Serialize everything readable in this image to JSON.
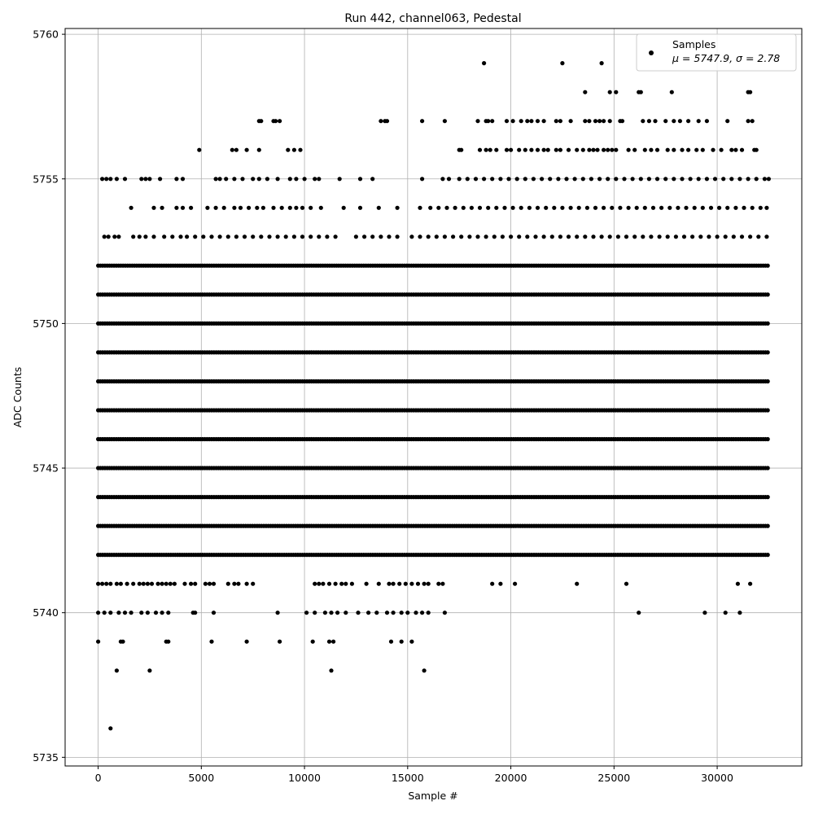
{
  "chart_data": {
    "type": "scatter",
    "title": "Run 442, channel063, Pedestal",
    "xlabel": "Sample #",
    "ylabel": "ADC Counts",
    "xlim": [
      -1600,
      34100
    ],
    "ylim": [
      5734.7,
      5760.2
    ],
    "xticks": [
      0,
      5000,
      10000,
      15000,
      20000,
      25000,
      30000
    ],
    "yticks": [
      5735,
      5740,
      5745,
      5750,
      5755,
      5760
    ],
    "grid": true,
    "legend_position": "top-right",
    "marker_color": "#000000",
    "series": [
      {
        "name": "Samples",
        "stats_label": "μ = 5747.9, σ = 2.78",
        "x_range": [
          0,
          32500
        ],
        "levels": [
          {
            "y": 5759,
            "x": [
              18700,
              22500,
              24400
            ]
          },
          {
            "y": 5758,
            "x": [
              23600,
              24800,
              25100,
              26200,
              26300,
              27800,
              31500,
              31600
            ]
          },
          {
            "y": 5757,
            "x": [
              7800,
              7900,
              8500,
              8600,
              8800,
              13700,
              13900,
              14000,
              15700,
              16800,
              18400,
              18800,
              18900,
              19100,
              19800,
              20100,
              20500,
              20800,
              21000,
              21300,
              21600,
              22200,
              22400,
              22900,
              23600,
              23800,
              24100,
              24300,
              24500,
              24800,
              25300,
              25400,
              26400,
              26700,
              27000,
              27500,
              27900,
              28200,
              28600,
              29100,
              29500,
              30500,
              31500,
              31700
            ]
          },
          {
            "y": 5756,
            "x": [
              4900,
              6500,
              6700,
              7200,
              7800,
              9200,
              9500,
              9800,
              17500,
              17600,
              18500,
              18800,
              19000,
              19300,
              19800,
              20000,
              20400,
              20700,
              21000,
              21300,
              21600,
              21800,
              22200,
              22400,
              22800,
              23200,
              23500,
              23800,
              24000,
              24200,
              24500,
              24700,
              24900,
              25100,
              25700,
              26000,
              26500,
              26800,
              27100,
              27600,
              27900,
              28300,
              28600,
              29000,
              29300,
              29800,
              30200,
              30700,
              30900,
              31200,
              31800,
              31900
            ]
          },
          {
            "y": 5755,
            "x": [
              200,
              400,
              600,
              900,
              1300,
              2100,
              2300,
              2500,
              3000,
              3800,
              4100,
              5700,
              5900,
              6200,
              6600,
              7000,
              7500,
              7800,
              8200,
              8700,
              9300,
              9600,
              10000,
              10500,
              10700,
              11700,
              12700,
              13300,
              15700,
              16700,
              17000,
              17500,
              17900,
              18300,
              18700,
              19100,
              19500,
              19900,
              20300,
              20700,
              21100,
              21500,
              21900,
              22300,
              22700,
              23100,
              23500,
              23900,
              24300,
              24700,
              25100,
              25500,
              25900,
              26300,
              26700,
              27100,
              27500,
              27900,
              28300,
              28700,
              29100,
              29500,
              29900,
              30300,
              30700,
              31100,
              31500,
              31900,
              32300,
              32500
            ]
          },
          {
            "y": 5754,
            "x": [
              1600,
              2700,
              3100,
              3800,
              4100,
              4500,
              5300,
              5700,
              6100,
              6600,
              6900,
              7300,
              7700,
              8000,
              8500,
              8900,
              9300,
              9600,
              9900,
              10300,
              10800,
              11900,
              12700,
              13600,
              14500,
              15600,
              16100,
              16500,
              16900,
              17300,
              17700,
              18100,
              18500,
              18900,
              19300,
              19700,
              20100,
              20500,
              20900,
              21300,
              21700,
              22100,
              22500,
              22900,
              23300,
              23700,
              24100,
              24500,
              24900,
              25300,
              25700,
              26100,
              26500,
              26900,
              27300,
              27700,
              28100,
              28500,
              28900,
              29300,
              29700,
              30100,
              30500,
              30900,
              31300,
              31700,
              32100,
              32400
            ]
          },
          {
            "y": 5753,
            "x": [
              300,
              500,
              800,
              1000,
              1700,
              2000,
              2300,
              2700,
              3200,
              3600,
              4000,
              4300,
              4700,
              5100,
              5500,
              5900,
              6300,
              6700,
              7100,
              7500,
              7900,
              8300,
              8700,
              9100,
              9500,
              9900,
              10300,
              10700,
              11100,
              11500,
              12500,
              12900,
              13300,
              13700,
              14100,
              14500,
              15200,
              15600,
              16000,
              16400,
              16800,
              17200,
              17600,
              18000,
              18400,
              18800,
              19200,
              19600,
              20000,
              20400,
              20800,
              21200,
              21600,
              22000,
              22400,
              22800,
              23200,
              23600,
              24000,
              24400,
              24800,
              25200,
              25600,
              26000,
              26400,
              26800,
              27200,
              27600,
              28000,
              28400,
              28800,
              29200,
              29600,
              30000,
              30400,
              30800,
              31200,
              31600,
              32000,
              32400
            ]
          },
          {
            "y": 5752
          },
          {
            "y": 5751
          },
          {
            "y": 5750
          },
          {
            "y": 5749
          },
          {
            "y": 5748
          },
          {
            "y": 5747
          },
          {
            "y": 5746
          },
          {
            "y": 5745
          },
          {
            "y": 5744
          },
          {
            "y": 5743
          },
          {
            "y": 5742
          },
          {
            "y": 5741,
            "x": [
              0,
              200,
              400,
              600,
              900,
              1100,
              1400,
              1700,
              2000,
              2200,
              2400,
              2600,
              2900,
              3100,
              3300,
              3500,
              3700,
              4200,
              4500,
              4700,
              5200,
              5400,
              5600,
              6300,
              6600,
              6800,
              7200,
              7500,
              10500,
              10700,
              10900,
              11200,
              11500,
              11800,
              12000,
              12300,
              13000,
              13600,
              14100,
              14300,
              14600,
              14900,
              15200,
              15500,
              15800,
              16000,
              16500,
              16700,
              19100,
              19500,
              20200,
              23200,
              25600,
              31000,
              31600
            ]
          },
          {
            "y": 5740,
            "x": [
              0,
              300,
              600,
              1000,
              1300,
              1600,
              2100,
              2400,
              2800,
              3100,
              3400,
              4600,
              4700,
              5600,
              8700,
              10100,
              10500,
              11000,
              11300,
              11600,
              12000,
              12600,
              13100,
              13500,
              14000,
              14300,
              14700,
              15000,
              15400,
              15700,
              16000,
              16800,
              26200,
              29400,
              30400,
              31100
            ]
          },
          {
            "y": 5739,
            "x": [
              0,
              1100,
              1200,
              3300,
              3400,
              5500,
              7200,
              8800,
              10400,
              11200,
              11400,
              14200,
              14700,
              15200
            ]
          },
          {
            "y": 5738,
            "x": [
              900,
              2500,
              11300,
              15800
            ]
          },
          {
            "y": 5736,
            "x": [
              600
            ]
          }
        ]
      }
    ]
  }
}
